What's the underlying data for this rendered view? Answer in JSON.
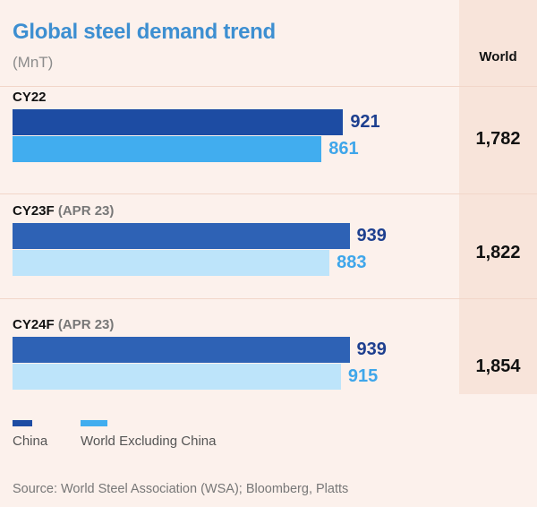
{
  "chart_data": {
    "type": "bar",
    "orientation": "horizontal",
    "title": "Global steel demand trend",
    "subtitle": "(MnT)",
    "categories": [
      {
        "label": "CY22",
        "note": ""
      },
      {
        "label": "CY23F",
        "note": "(APR 23)"
      },
      {
        "label": "CY24F",
        "note": "(APR 23)"
      }
    ],
    "series": [
      {
        "name": "China",
        "values": [
          921,
          939,
          939
        ],
        "colors": [
          "#1d4ca3",
          "#2e62b5",
          "#2e62b5"
        ]
      },
      {
        "name": "World Excluding China",
        "values": [
          861,
          883,
          915
        ],
        "colors": [
          "#41adef",
          "#bde4fa",
          "#bde4fa"
        ]
      }
    ],
    "value_colors": {
      "China": "#1d3f8f",
      "World Excluding China": "#3fa6ea"
    },
    "world_column": {
      "header": "World",
      "values": [
        "1,782",
        "1,822",
        "1,854"
      ]
    },
    "legend": {
      "position": "bottom-left",
      "colors": [
        "#1d4ca3",
        "#41adef"
      ]
    },
    "xlim": [
      0,
      1000
    ],
    "source": "Source: World Steel Association (WSA); Bloomberg, Platts"
  }
}
